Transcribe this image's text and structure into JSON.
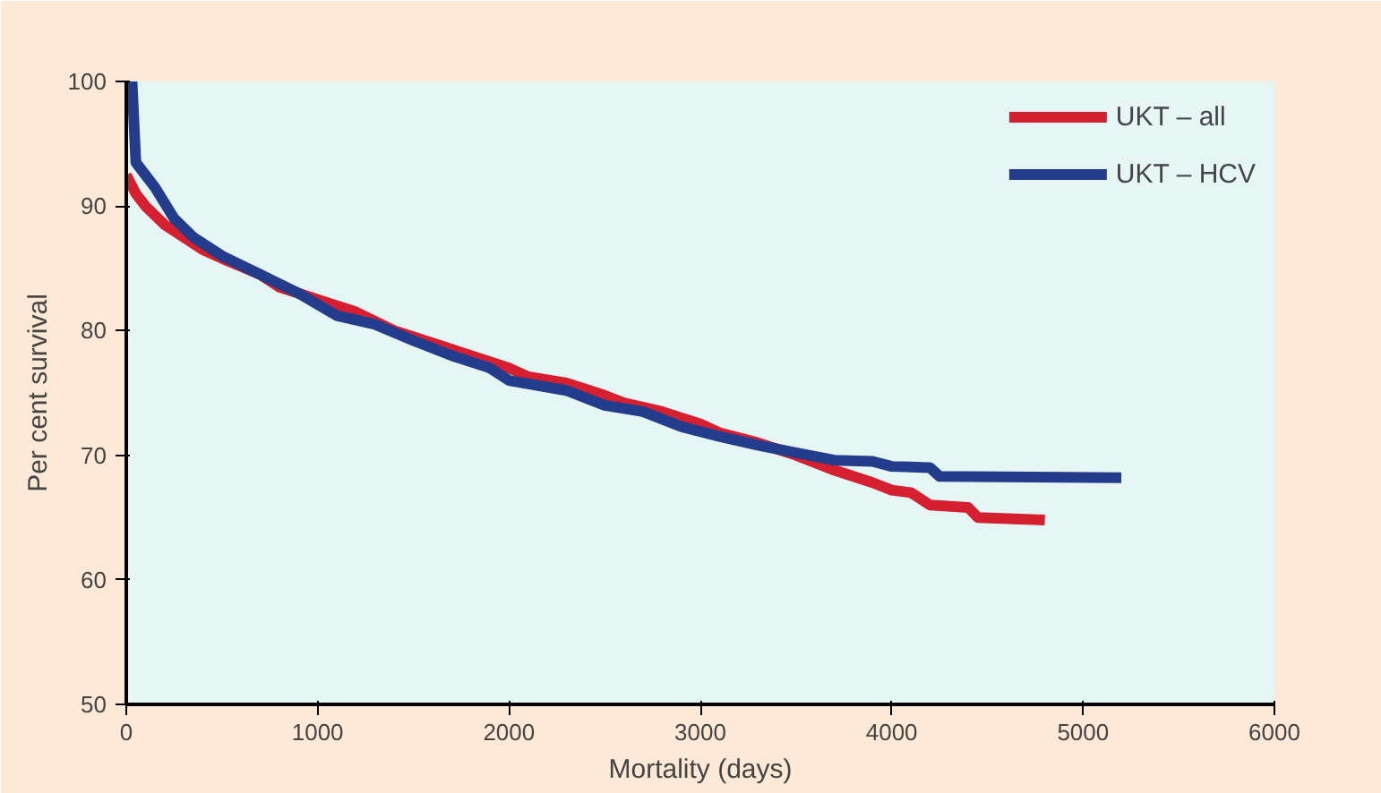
{
  "chart_data": {
    "type": "line",
    "xlabel": "Mortality (days)",
    "ylabel": "Per cent survival",
    "xlim": [
      0,
      6000
    ],
    "xticks": [
      0,
      1000,
      2000,
      3000,
      4000,
      5000,
      6000
    ],
    "ylim": [
      50,
      100
    ],
    "yticks": [
      50,
      60,
      70,
      80,
      90,
      100
    ],
    "grid": false,
    "legend": "top right",
    "marker": "none",
    "line_style": "solid",
    "series": [
      {
        "name": "UKT – all",
        "color": "#d42030",
        "x": [
          0,
          50,
          100,
          200,
          300,
          400,
          500,
          700,
          800,
          1000,
          1200,
          1400,
          1600,
          1800,
          2000,
          2100,
          2300,
          2500,
          2600,
          2800,
          3000,
          3100,
          3300,
          3500,
          3700,
          3900,
          4000,
          4100,
          4200,
          4400,
          4450,
          4800
        ],
        "values": [
          92.5,
          91,
          90,
          88.5,
          87.5,
          86.5,
          85.8,
          84.5,
          83.5,
          82.5,
          81.5,
          80,
          79,
          78,
          77,
          76.3,
          75.8,
          74.8,
          74.2,
          73.5,
          72.5,
          71.8,
          71,
          70,
          68.8,
          67.8,
          67.2,
          67,
          66,
          65.8,
          65,
          64.8
        ]
      },
      {
        "name": "UKT – HCV",
        "color": "#243c8c",
        "x": [
          0,
          30,
          50,
          150,
          250,
          350,
          500,
          700,
          900,
          1100,
          1300,
          1500,
          1700,
          1900,
          2000,
          2300,
          2500,
          2700,
          2900,
          3100,
          3300,
          3500,
          3700,
          3900,
          4000,
          4200,
          4250,
          5200
        ],
        "values": [
          100,
          100,
          93.5,
          91.5,
          89,
          87.5,
          86,
          84.5,
          83,
          81.2,
          80.5,
          79.2,
          78,
          77,
          76,
          75.2,
          74,
          73.5,
          72.3,
          71.5,
          70.8,
          70.2,
          69.6,
          69.5,
          69.1,
          69,
          68.3,
          68.2
        ]
      }
    ]
  }
}
